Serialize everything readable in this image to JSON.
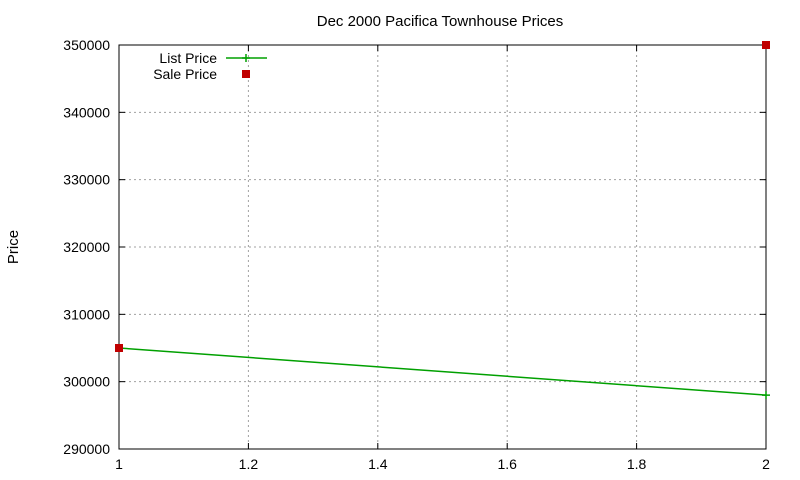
{
  "chart_data": {
    "type": "line",
    "title": "Dec 2000 Pacifica Townhouse Prices",
    "xlabel": "",
    "ylabel": "Price",
    "xlim": [
      1,
      2
    ],
    "ylim": [
      290000,
      350000
    ],
    "xticks": [
      1,
      1.2,
      1.4,
      1.6,
      1.8,
      2
    ],
    "xtick_labels": [
      "1",
      "1.2",
      "1.4",
      "1.6",
      "1.8",
      "2"
    ],
    "yticks": [
      290000,
      300000,
      310000,
      320000,
      330000,
      340000,
      350000
    ],
    "ytick_labels": [
      "290000",
      "300000",
      "310000",
      "320000",
      "330000",
      "340000",
      "350000"
    ],
    "grid": true,
    "legend_position": "top-left",
    "series": [
      {
        "name": "List Price",
        "style": "linespoints",
        "marker": "plus",
        "color": "#00a000",
        "points": [
          [
            1,
            305000
          ],
          [
            2,
            298000
          ]
        ]
      },
      {
        "name": "Sale Price",
        "style": "points",
        "marker": "square",
        "color": "#c00000",
        "points": [
          [
            1,
            305000
          ],
          [
            2,
            350000
          ]
        ]
      }
    ]
  }
}
